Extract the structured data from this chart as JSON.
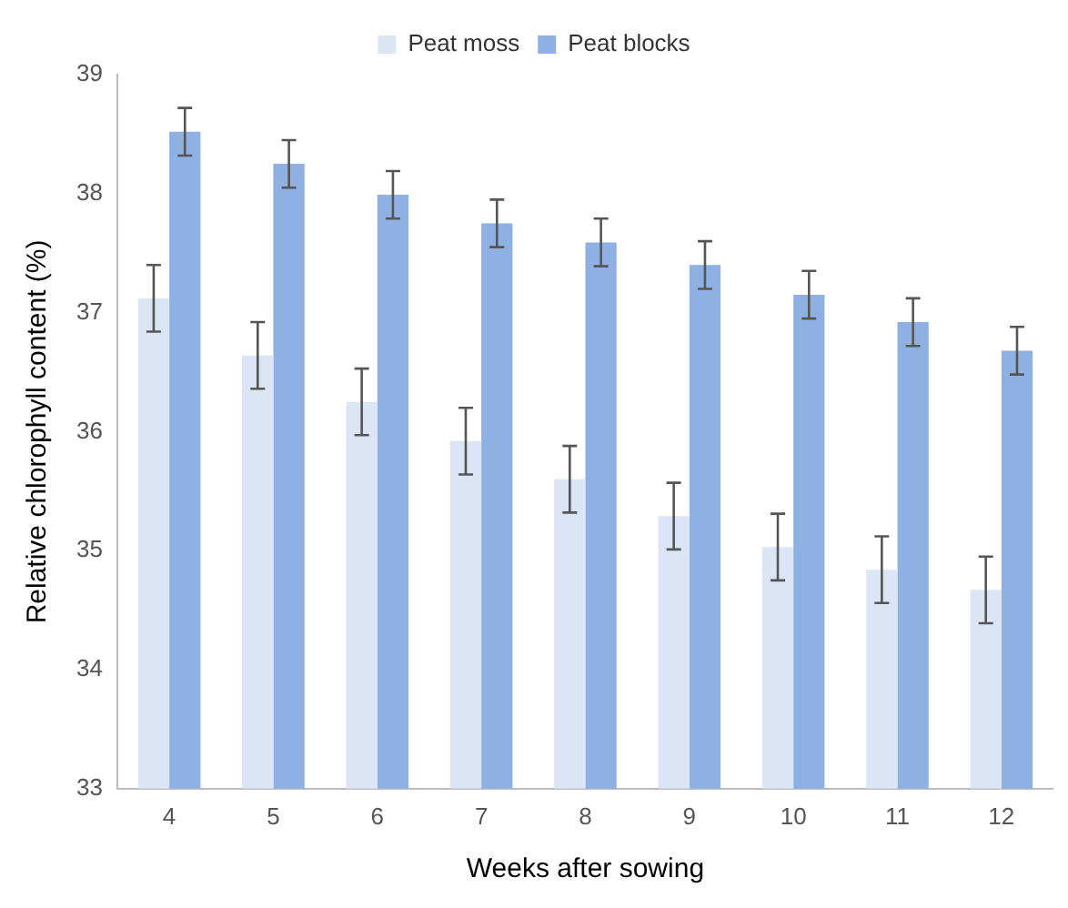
{
  "chart_data": {
    "type": "bar",
    "xlabel": "Weeks after sowing",
    "ylabel": "Relative chlorophyll content (%)",
    "categories": [
      "4",
      "5",
      "6",
      "7",
      "8",
      "9",
      "10",
      "11",
      "12"
    ],
    "series": [
      {
        "name": "Peat moss",
        "color": "#dbe5f5",
        "values": [
          37.12,
          36.64,
          36.25,
          35.92,
          35.6,
          35.29,
          35.03,
          34.84,
          34.67
        ],
        "errors": [
          0.28,
          0.28,
          0.28,
          0.28,
          0.28,
          0.28,
          0.28,
          0.28,
          0.28
        ]
      },
      {
        "name": "Peat blocks",
        "color": "#8fb0e3",
        "values": [
          38.52,
          38.25,
          37.99,
          37.75,
          37.59,
          37.4,
          37.15,
          36.92,
          36.68
        ],
        "errors": [
          0.2,
          0.2,
          0.2,
          0.2,
          0.2,
          0.2,
          0.2,
          0.2,
          0.2
        ]
      }
    ],
    "ylim": [
      33,
      39
    ],
    "yticks": [
      33,
      34,
      35,
      36,
      37,
      38,
      39
    ],
    "grid": false,
    "legend": "top"
  }
}
